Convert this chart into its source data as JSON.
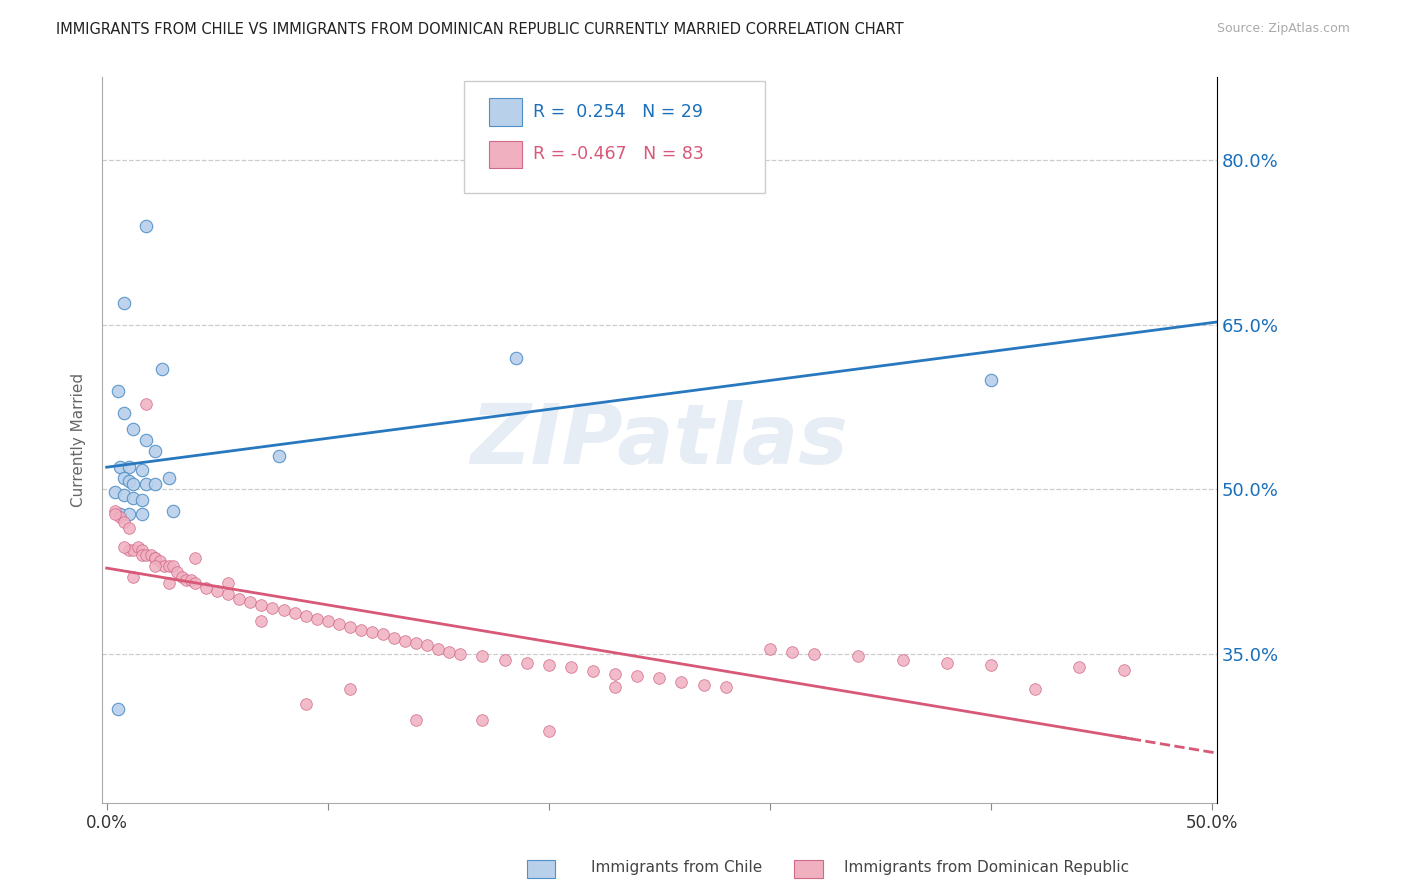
{
  "title": "IMMIGRANTS FROM CHILE VS IMMIGRANTS FROM DOMINICAN REPUBLIC CURRENTLY MARRIED CORRELATION CHART",
  "source": "Source: ZipAtlas.com",
  "ylabel": "Currently Married",
  "y_ticks": [
    0.35,
    0.5,
    0.65,
    0.8
  ],
  "y_tick_labels": [
    "35.0%",
    "50.0%",
    "65.0%",
    "80.0%"
  ],
  "xlim": [
    -0.002,
    0.502
  ],
  "ylim": [
    0.215,
    0.875
  ],
  "watermark": "ZIPatlas",
  "legend_blue_R": "0.254",
  "legend_blue_N": "29",
  "legend_pink_R": "-0.467",
  "legend_pink_N": "83",
  "blue_face_color": "#b8d0ea",
  "blue_edge_color": "#5090c8",
  "pink_face_color": "#f0b0c0",
  "pink_edge_color": "#d06888",
  "blue_line_color": "#2878c0",
  "pink_line_color": "#d85878",
  "axis_tick_color": "#1a6fba",
  "title_color": "#222222",
  "blue_scatter_x": [
    0.018,
    0.008,
    0.025,
    0.005,
    0.008,
    0.012,
    0.018,
    0.022,
    0.006,
    0.01,
    0.016,
    0.008,
    0.01,
    0.012,
    0.018,
    0.022,
    0.028,
    0.004,
    0.008,
    0.012,
    0.016,
    0.006,
    0.01,
    0.016,
    0.03,
    0.078,
    0.185,
    0.4,
    0.005
  ],
  "blue_scatter_y": [
    0.74,
    0.67,
    0.61,
    0.59,
    0.57,
    0.555,
    0.545,
    0.535,
    0.52,
    0.52,
    0.518,
    0.51,
    0.508,
    0.505,
    0.505,
    0.505,
    0.51,
    0.498,
    0.495,
    0.492,
    0.49,
    0.478,
    0.478,
    0.478,
    0.48,
    0.53,
    0.62,
    0.6,
    0.3
  ],
  "pink_scatter_x": [
    0.004,
    0.006,
    0.008,
    0.01,
    0.01,
    0.012,
    0.014,
    0.016,
    0.016,
    0.018,
    0.02,
    0.022,
    0.022,
    0.024,
    0.026,
    0.028,
    0.03,
    0.032,
    0.034,
    0.036,
    0.038,
    0.04,
    0.045,
    0.05,
    0.055,
    0.06,
    0.065,
    0.07,
    0.075,
    0.08,
    0.085,
    0.09,
    0.095,
    0.1,
    0.105,
    0.11,
    0.115,
    0.12,
    0.125,
    0.13,
    0.135,
    0.14,
    0.145,
    0.15,
    0.155,
    0.16,
    0.17,
    0.18,
    0.19,
    0.2,
    0.21,
    0.22,
    0.23,
    0.24,
    0.25,
    0.26,
    0.27,
    0.28,
    0.3,
    0.31,
    0.32,
    0.34,
    0.36,
    0.38,
    0.4,
    0.42,
    0.44,
    0.46,
    0.004,
    0.008,
    0.012,
    0.018,
    0.022,
    0.028,
    0.04,
    0.055,
    0.07,
    0.09,
    0.11,
    0.14,
    0.17,
    0.2,
    0.23
  ],
  "pink_scatter_y": [
    0.48,
    0.475,
    0.47,
    0.465,
    0.445,
    0.445,
    0.448,
    0.445,
    0.44,
    0.44,
    0.44,
    0.438,
    0.438,
    0.435,
    0.43,
    0.43,
    0.43,
    0.425,
    0.42,
    0.418,
    0.418,
    0.415,
    0.41,
    0.408,
    0.405,
    0.4,
    0.398,
    0.395,
    0.392,
    0.39,
    0.388,
    0.385,
    0.382,
    0.38,
    0.378,
    0.375,
    0.372,
    0.37,
    0.368,
    0.365,
    0.362,
    0.36,
    0.358,
    0.355,
    0.352,
    0.35,
    0.348,
    0.345,
    0.342,
    0.34,
    0.338,
    0.335,
    0.332,
    0.33,
    0.328,
    0.325,
    0.322,
    0.32,
    0.355,
    0.352,
    0.35,
    0.348,
    0.345,
    0.342,
    0.34,
    0.318,
    0.338,
    0.336,
    0.478,
    0.448,
    0.42,
    0.578,
    0.43,
    0.415,
    0.438,
    0.415,
    0.38,
    0.305,
    0.318,
    0.29,
    0.29,
    0.28,
    0.32
  ]
}
